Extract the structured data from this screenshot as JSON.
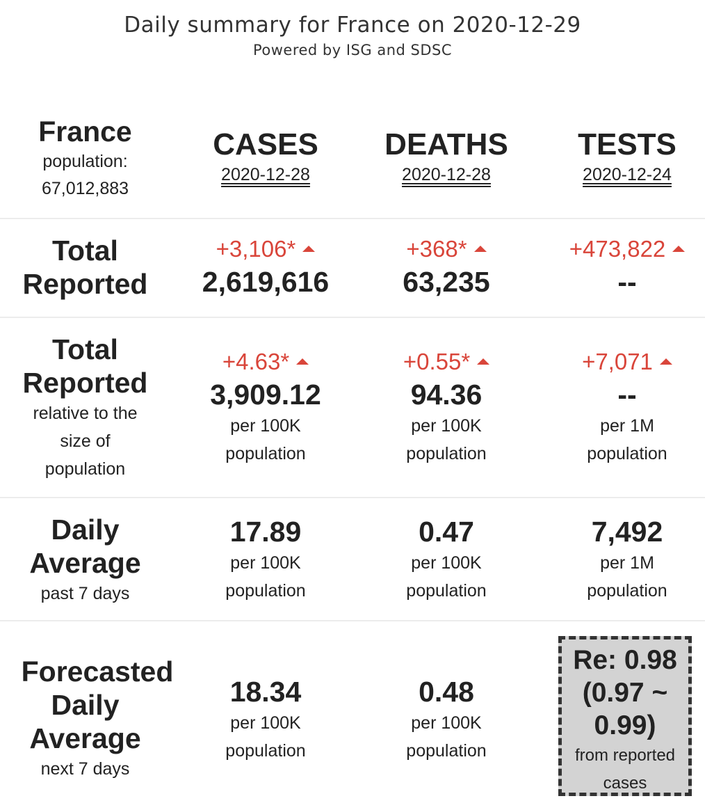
{
  "header": {
    "title": "Daily summary for France on 2020-12-29",
    "subtitle": "Powered by ISG and SDSC"
  },
  "country": {
    "name": "France",
    "population_label": "population:",
    "population": "67,012,883"
  },
  "columns": [
    {
      "title": "CASES",
      "date": "2020-12-28"
    },
    {
      "title": "DEATHS",
      "date": "2020-12-28"
    },
    {
      "title": "TESTS",
      "date": "2020-12-24"
    }
  ],
  "rows": {
    "total_reported": {
      "label_line1": "Total",
      "label_line2": "Reported",
      "cases": {
        "delta": "+3,106*",
        "value": "2,619,616"
      },
      "deaths": {
        "delta": "+368*",
        "value": "63,235"
      },
      "tests": {
        "delta": "+473,822",
        "value": "--"
      }
    },
    "relative": {
      "label_line1": "Total",
      "label_line2": "Reported",
      "sub_line1": "relative to the",
      "sub_line2": "size of",
      "sub_line3": "population",
      "cases": {
        "delta": "+4.63*",
        "value": "3,909.12",
        "unit1": "per 100K",
        "unit2": "population"
      },
      "deaths": {
        "delta": "+0.55*",
        "value": "94.36",
        "unit1": "per 100K",
        "unit2": "population"
      },
      "tests": {
        "delta": "+7,071",
        "value": "--",
        "unit1": "per 1M",
        "unit2": "population"
      }
    },
    "daily_average": {
      "label_line1": "Daily",
      "label_line2": "Average",
      "sub": "past 7 days",
      "cases": {
        "value": "17.89",
        "unit1": "per 100K",
        "unit2": "population"
      },
      "deaths": {
        "value": "0.47",
        "unit1": "per 100K",
        "unit2": "population"
      },
      "tests": {
        "value": "7,492",
        "unit1": "per 1M",
        "unit2": "population"
      }
    },
    "forecast": {
      "label_line1": "Forecasted",
      "label_line2": "Daily",
      "label_line3": "Average",
      "sub": "next 7 days",
      "cases": {
        "value": "18.34",
        "unit1": "per 100K",
        "unit2": "population"
      },
      "deaths": {
        "value": "0.48",
        "unit1": "per 100K",
        "unit2": "population"
      },
      "re": {
        "line1": "Re: 0.98",
        "line2": "(0.97 ~",
        "line3": "0.99)",
        "sub1": "from reported",
        "sub2": "cases"
      }
    }
  },
  "colors": {
    "delta": "#d9453a",
    "text": "#222222",
    "re_box_bg": "#d3d3d3"
  },
  "icons": {
    "increase": "triangle-up-icon"
  }
}
